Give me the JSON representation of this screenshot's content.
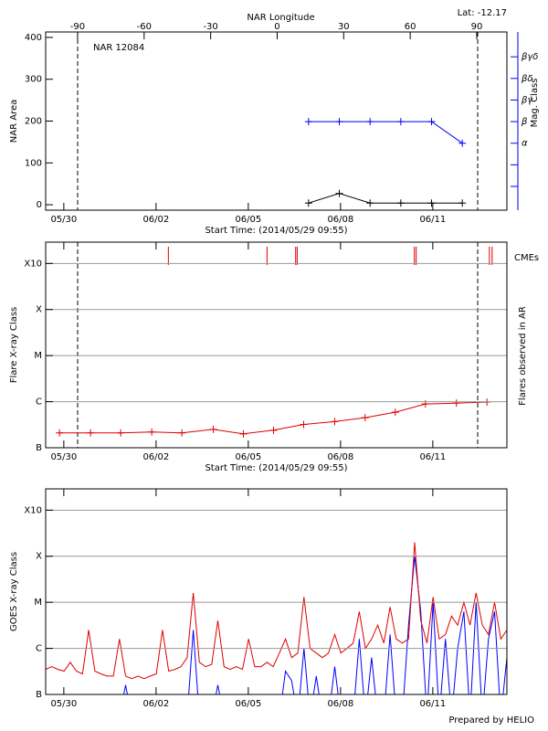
{
  "chart_data": [
    {
      "type": "line",
      "title": "NAR 12084",
      "annotation": "Lat: -12.17",
      "ylabel": "NAR Area",
      "y2label": "Mag. Class",
      "x2label": "NAR Longitude",
      "xlabel": "Start Time: (2014/05/29 09:55)",
      "xlim": [
        0,
        15
      ],
      "xticks": [
        {
          "value": 0.59,
          "label": "05/30"
        },
        {
          "value": 3.59,
          "label": "06/02"
        },
        {
          "value": 6.59,
          "label": "06/05"
        },
        {
          "value": 9.59,
          "label": "06/08"
        },
        {
          "value": 12.59,
          "label": "06/11"
        }
      ],
      "x2lim": [
        -104.4,
        103.6
      ],
      "x2ticks": [
        -90,
        -60,
        -30,
        0,
        30,
        60,
        90
      ],
      "ylim": [
        -13,
        413
      ],
      "yticks": [
        0,
        100,
        200,
        300,
        400
      ],
      "y2lim": [
        -2.1,
        6.15
      ],
      "y2ticks": [
        {
          "value": 1,
          "label": "α"
        },
        {
          "value": 2,
          "label": "β"
        },
        {
          "value": 3,
          "label": "βγ"
        },
        {
          "value": 4,
          "label": "βδ"
        },
        {
          "value": 5,
          "label": "βγδ"
        }
      ],
      "y2minor_ticks": [
        -1,
        0
      ],
      "y2color": "#0000ee",
      "vlines": [
        1.04,
        14.05
      ],
      "x": [
        8.55,
        9.55,
        10.55,
        11.55,
        12.55,
        13.55
      ],
      "series": [
        {
          "color": "#000000",
          "values": [
            4,
            27,
            4,
            4,
            4,
            4
          ]
        },
        {
          "color": "#0000ee",
          "axis": "y2",
          "values": [
            2,
            2,
            2,
            2,
            2,
            1
          ]
        }
      ]
    },
    {
      "type": "line",
      "ylabel": "Flare X-ray Class",
      "y2label": "Flares observed in AR",
      "xlabel": "Start Time: (2014/05/29 09:55)",
      "xlim": [
        0,
        15
      ],
      "xticks": [
        {
          "value": 0.59,
          "label": "05/30"
        },
        {
          "value": 3.59,
          "label": "06/02"
        },
        {
          "value": 6.59,
          "label": "06/05"
        },
        {
          "value": 9.59,
          "label": "06/08"
        },
        {
          "value": 12.59,
          "label": "06/11"
        }
      ],
      "log_scale": true,
      "grid": true,
      "ylim": [
        1e-07,
        0.0029
      ],
      "yticks": [
        {
          "value": 1e-07,
          "label": "B"
        },
        {
          "value": 1e-06,
          "label": "C"
        },
        {
          "value": 1e-05,
          "label": "M"
        },
        {
          "value": 0.0001,
          "label": "X"
        },
        {
          "value": 0.001,
          "label": "X10"
        }
      ],
      "vlines": [
        1.04,
        14.05
      ],
      "cme": {
        "label": "CMEs",
        "color": "#dd0000",
        "x": [
          3.99,
          7.2,
          8.13,
          8.18,
          11.99,
          12.05,
          14.43,
          14.52
        ]
      },
      "x": [
        0.45,
        1.46,
        2.44,
        3.45,
        4.43,
        5.45,
        6.43,
        7.41,
        8.39,
        9.4,
        10.39,
        11.37,
        12.35,
        13.36,
        14.35
      ],
      "series": [
        {
          "color": "#dd0000",
          "values": [
            2.1e-07,
            2.1e-07,
            2.1e-07,
            2.2e-07,
            2.1e-07,
            2.5e-07,
            2e-07,
            2.4e-07,
            3.2e-07,
            3.7e-07,
            4.5e-07,
            5.9e-07,
            8.9e-07,
            9.3e-07,
            9.8e-07
          ]
        }
      ]
    },
    {
      "type": "line",
      "ylabel": "GOES X-ray Class",
      "xlim": [
        0,
        15
      ],
      "xticks": [
        {
          "value": 0.59,
          "label": "05/30"
        },
        {
          "value": 3.59,
          "label": "06/02"
        },
        {
          "value": 6.59,
          "label": "06/05"
        },
        {
          "value": 9.59,
          "label": "06/08"
        },
        {
          "value": 12.59,
          "label": "06/11"
        }
      ],
      "log_scale": true,
      "grid": true,
      "ylim": [
        1e-07,
        0.0029
      ],
      "yticks": [
        {
          "value": 1e-07,
          "label": "B"
        },
        {
          "value": 1e-06,
          "label": "C"
        },
        {
          "value": 1e-05,
          "label": "M"
        },
        {
          "value": 0.0001,
          "label": "X"
        },
        {
          "value": 0.001,
          "label": "X10"
        }
      ],
      "x": [
        0,
        0.2,
        0.4,
        0.6,
        0.8,
        1,
        1.2,
        1.4,
        1.6,
        1.8,
        2,
        2.2,
        2.4,
        2.6,
        2.8,
        3,
        3.2,
        3.4,
        3.6,
        3.8,
        4,
        4.2,
        4.4,
        4.6,
        4.8,
        5,
        5.2,
        5.4,
        5.6,
        5.8,
        6,
        6.2,
        6.4,
        6.6,
        6.8,
        7,
        7.2,
        7.4,
        7.6,
        7.8,
        8,
        8.2,
        8.4,
        8.6,
        8.8,
        9,
        9.2,
        9.4,
        9.6,
        9.8,
        10,
        10.2,
        10.4,
        10.6,
        10.8,
        11,
        11.2,
        11.4,
        11.6,
        11.8,
        12,
        12.2,
        12.4,
        12.6,
        12.8,
        13,
        13.2,
        13.4,
        13.6,
        13.8,
        14,
        14.2,
        14.4,
        14.6,
        14.8,
        15
      ],
      "series": [
        {
          "color": "#0000ff",
          "values": [
            3.2e-08,
            3.2e-08,
            3.2e-08,
            3.2e-08,
            3.2e-08,
            3.2e-08,
            3.2e-08,
            3.2e-08,
            3.2e-08,
            3.2e-08,
            3.2e-08,
            3.2e-08,
            3.2e-08,
            1.6e-07,
            3.2e-08,
            3.2e-08,
            3.2e-08,
            3.2e-08,
            3.2e-08,
            3.2e-08,
            3.2e-08,
            3.2e-08,
            3.2e-08,
            3.2e-08,
            2.5e-06,
            3.2e-08,
            3.2e-08,
            3.2e-08,
            1.6e-07,
            3.2e-08,
            3.2e-08,
            3.2e-08,
            3.2e-08,
            3.2e-08,
            3.2e-08,
            3.2e-08,
            3.2e-08,
            3.2e-08,
            3.2e-08,
            3.2e-07,
            2e-07,
            3.2e-08,
            1e-06,
            3.2e-08,
            2.5e-07,
            3.2e-08,
            3.2e-08,
            4e-07,
            3.2e-08,
            3.2e-08,
            3.2e-08,
            1.6e-06,
            3.2e-08,
            6.3e-07,
            3.2e-08,
            3.2e-08,
            2e-06,
            3.2e-08,
            3.2e-08,
            3.2e-06,
            0.0001,
            6.3e-06,
            3.2e-08,
            1e-05,
            3.2e-08,
            1.6e-06,
            3.2e-08,
            1e-06,
            6.3e-06,
            3.2e-08,
            1e-05,
            3.2e-08,
            1.6e-06,
            6.3e-06,
            3.2e-08,
            6.3e-07
          ]
        },
        {
          "color": "#dd0000",
          "values": [
            3.5e-07,
            4e-07,
            3.5e-07,
            3.2e-07,
            5e-07,
            3.2e-07,
            2.8e-07,
            2.5e-06,
            3.2e-07,
            2.8e-07,
            2.5e-07,
            2.5e-07,
            1.6e-06,
            2.5e-07,
            2.2e-07,
            2.5e-07,
            2.2e-07,
            2.5e-07,
            2.8e-07,
            2.5e-06,
            3.2e-07,
            3.5e-07,
            4e-07,
            6.3e-07,
            1.6e-05,
            5e-07,
            4e-07,
            4.5e-07,
            4e-06,
            4e-07,
            3.5e-07,
            4e-07,
            3.5e-07,
            1.6e-06,
            4e-07,
            4e-07,
            5e-07,
            4e-07,
            7.9e-07,
            1.6e-06,
            6.3e-07,
            7.9e-07,
            1.3e-05,
            1e-06,
            7.9e-07,
            6.3e-07,
            7.9e-07,
            2e-06,
            7.9e-07,
            1e-06,
            1.3e-06,
            6.3e-06,
            1e-06,
            1.6e-06,
            3.2e-06,
            1.3e-06,
            7.9e-06,
            1.6e-06,
            1.3e-06,
            1.6e-06,
            0.0002,
            4e-06,
            1.3e-06,
            1.3e-05,
            1.6e-06,
            2e-06,
            5e-06,
            3.2e-06,
            1e-05,
            3.2e-06,
            1.6e-05,
            3.2e-06,
            2e-06,
            1e-05,
            1.6e-06,
            2.5e-06
          ]
        }
      ]
    }
  ],
  "footer": "Prepared by HELIO"
}
